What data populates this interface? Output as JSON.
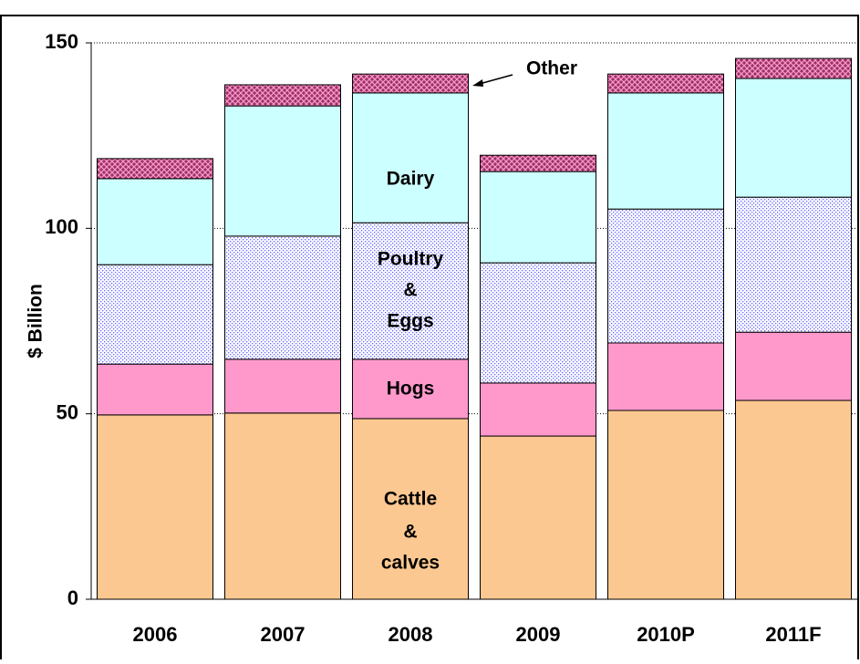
{
  "chart_data": {
    "type": "stacked_bar",
    "y_label": "$ Billion",
    "categories": [
      "2006",
      "2007",
      "2008",
      "2009",
      "2010P",
      "2011F"
    ],
    "series": [
      {
        "label": [
          "Cattle",
          "&",
          "calves"
        ],
        "color": "#fcc891",
        "values": [
          49.7,
          50.2,
          48.7,
          44.0,
          50.9,
          53.6
        ]
      },
      {
        "label": [
          "Hogs"
        ],
        "color": "#ff99cc",
        "values": [
          13.7,
          14.5,
          16.0,
          14.3,
          18.2,
          18.4
        ]
      },
      {
        "label": [
          "Poultry",
          "&",
          "Eggs"
        ],
        "color": "#6666ff",
        "values": [
          26.8,
          33.2,
          36.8,
          32.4,
          36.1,
          36.4
        ]
      },
      {
        "label": [
          "Dairy"
        ],
        "color": "#ccffff",
        "values": [
          23.2,
          35.1,
          35.0,
          24.6,
          31.3,
          32.0
        ]
      },
      {
        "label": [
          "Other"
        ],
        "color": "#993366",
        "values": [
          5.4,
          5.7,
          5.1,
          4.4,
          5.1,
          5.4
        ]
      }
    ],
    "ylim": [
      0,
      150
    ],
    "yticks": [
      0,
      50,
      100,
      150
    ],
    "grid": true
  }
}
